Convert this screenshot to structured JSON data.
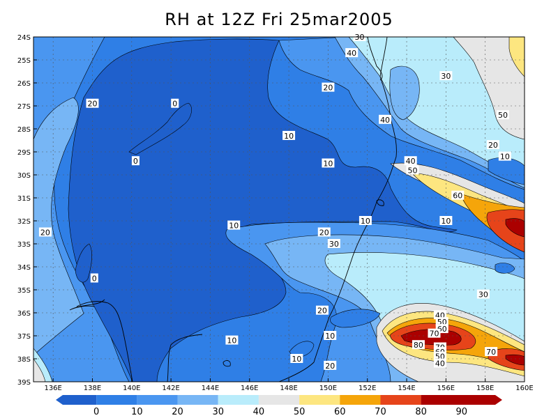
{
  "title": "RH at 12Z Fri 25mar2005",
  "colors": {
    "c0": "#1f60cc",
    "c10": "#2f7fe6",
    "c20": "#4a96f0",
    "c30": "#77b6f5",
    "c40": "#b9ecfb",
    "c50": "#e6e6e6",
    "c60": "#fde680",
    "c70": "#f5a50a",
    "c80": "#e6441a",
    "c90": "#ab0000"
  },
  "lat_ticks": [
    "24S",
    "25S",
    "26S",
    "27S",
    "28S",
    "29S",
    "30S",
    "31S",
    "32S",
    "33S",
    "34S",
    "35S",
    "36S",
    "37S",
    "38S",
    "39S"
  ],
  "lon_ticks": [
    "136E",
    "138E",
    "140E",
    "142E",
    "144E",
    "146E",
    "148E",
    "150E",
    "152E",
    "154E",
    "156E",
    "158E",
    "160E"
  ],
  "colorbar_labels": [
    "0",
    "10",
    "20",
    "30",
    "40",
    "50",
    "60",
    "70",
    "80",
    "90"
  ],
  "contour_labels": [
    {
      "text": "20",
      "lon": 138.0,
      "lat": -26.9
    },
    {
      "text": "0",
      "lon": 142.2,
      "lat": -26.9
    },
    {
      "text": "0",
      "lon": 140.2,
      "lat": -29.4
    },
    {
      "text": "20",
      "lon": 135.6,
      "lat": -32.5
    },
    {
      "text": "0",
      "lon": 138.1,
      "lat": -34.5
    },
    {
      "text": "10",
      "lon": 148.0,
      "lat": -28.3
    },
    {
      "text": "10",
      "lon": 150.0,
      "lat": -29.5
    },
    {
      "text": "20",
      "lon": 150.0,
      "lat": -26.2
    },
    {
      "text": "40",
      "lon": 151.2,
      "lat": -24.7
    },
    {
      "text": "30",
      "lon": 151.6,
      "lat": -24.0
    },
    {
      "text": "40",
      "lon": 152.9,
      "lat": -27.6
    },
    {
      "text": "30",
      "lon": 156.0,
      "lat": -25.7
    },
    {
      "text": "50",
      "lon": 158.9,
      "lat": -27.4
    },
    {
      "text": "20",
      "lon": 158.4,
      "lat": -28.7
    },
    {
      "text": "10",
      "lon": 159.0,
      "lat": -29.2
    },
    {
      "text": "40",
      "lon": 154.2,
      "lat": -29.4
    },
    {
      "text": "50",
      "lon": 154.3,
      "lat": -29.8
    },
    {
      "text": "60",
      "lon": 156.6,
      "lat": -30.9
    },
    {
      "text": "10",
      "lon": 145.2,
      "lat": -32.2
    },
    {
      "text": "20",
      "lon": 149.8,
      "lat": -32.5
    },
    {
      "text": "30",
      "lon": 150.3,
      "lat": -33.0
    },
    {
      "text": "10",
      "lon": 151.9,
      "lat": -32.0
    },
    {
      "text": "10",
      "lon": 156.0,
      "lat": -32.0
    },
    {
      "text": "30",
      "lon": 157.9,
      "lat": -35.2
    },
    {
      "text": "20",
      "lon": 149.7,
      "lat": -35.9
    },
    {
      "text": "10",
      "lon": 145.1,
      "lat": -37.2
    },
    {
      "text": "10",
      "lon": 150.1,
      "lat": -37.0
    },
    {
      "text": "10",
      "lon": 148.4,
      "lat": -38.0
    },
    {
      "text": "20",
      "lon": 150.1,
      "lat": -38.3
    },
    {
      "text": "40",
      "lon": 155.7,
      "lat": -36.1
    },
    {
      "text": "50",
      "lon": 155.8,
      "lat": -36.4
    },
    {
      "text": "60",
      "lon": 155.8,
      "lat": -36.7
    },
    {
      "text": "70",
      "lon": 155.4,
      "lat": -36.9
    },
    {
      "text": "80",
      "lon": 154.6,
      "lat": -37.4
    },
    {
      "text": "70",
      "lon": 155.7,
      "lat": -37.5
    },
    {
      "text": "60",
      "lon": 155.7,
      "lat": -37.7
    },
    {
      "text": "50",
      "lon": 155.7,
      "lat": -37.9
    },
    {
      "text": "40",
      "lon": 155.7,
      "lat": -38.2
    },
    {
      "text": "70",
      "lon": 158.3,
      "lat": -37.7
    }
  ]
}
